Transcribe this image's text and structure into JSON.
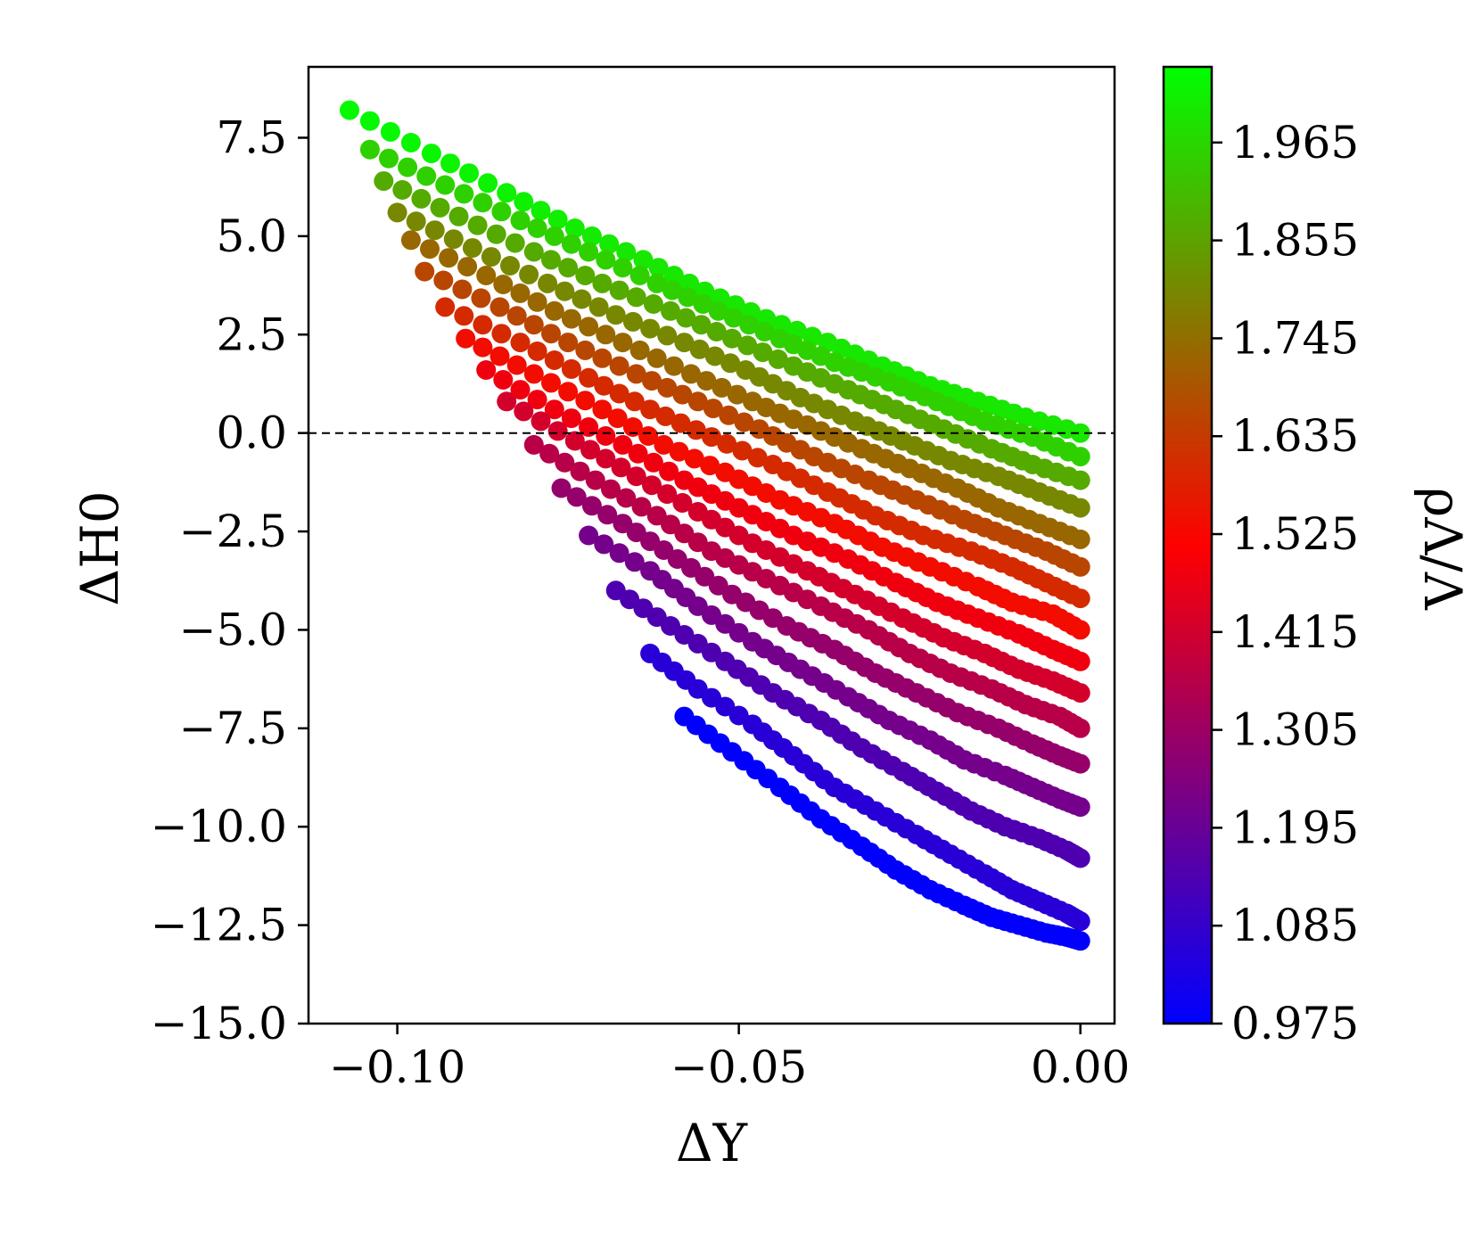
{
  "chart_data": {
    "type": "scatter",
    "title": "",
    "xlabel": "ΔY",
    "ylabel": "ΔH0",
    "colorbar_label": "ρΛ/Λ",
    "xlim": [
      -0.113,
      0.005
    ],
    "ylim": [
      -15.0,
      9.3
    ],
    "x_ticks": [
      -0.1,
      -0.05,
      0.0
    ],
    "x_tick_labels": [
      "−0.10",
      "−0.05",
      "0.00"
    ],
    "y_ticks": [
      7.5,
      5.0,
      2.5,
      0.0,
      -2.5,
      -5.0,
      -7.5,
      -10.0,
      -12.5,
      -15.0
    ],
    "y_tick_labels": [
      "7.5",
      "5.0",
      "2.5",
      "0.0",
      "−2.5",
      "−5.0",
      "−7.5",
      "−10.0",
      "−12.5",
      "−15.0"
    ],
    "colorbar": {
      "range": [
        0.975,
        2.05
      ],
      "ticks": [
        0.975,
        1.085,
        1.195,
        1.305,
        1.415,
        1.525,
        1.635,
        1.745,
        1.855,
        1.965
      ],
      "tick_labels": [
        "0.975",
        "1.085",
        "1.195",
        "1.305",
        "1.415",
        "1.525",
        "1.635",
        "1.745",
        "1.855",
        "1.965"
      ],
      "colors": [
        "#0000ff",
        "#ff0000",
        "#00ff00"
      ]
    },
    "reference_line": {
      "y": 0.0,
      "style": "dashed",
      "color": "#000000"
    },
    "series": [
      {
        "x": [
          -0.107,
          -0.095,
          -0.084,
          -0.074,
          -0.064,
          -0.055,
          -0.046,
          -0.037,
          -0.029,
          -0.022,
          -0.015,
          -0.008,
          0.0
        ],
        "y": [
          8.2,
          7.1,
          6.1,
          5.2,
          4.4,
          3.6,
          2.9,
          2.3,
          1.7,
          1.2,
          0.8,
          0.4,
          0.0
        ],
        "c": [
          2.04,
          2.03,
          2.02,
          2.01,
          2.0,
          2.0,
          2.0,
          2.0,
          2.0,
          2.0,
          2.0,
          2.0,
          2.0
        ]
      },
      {
        "x": [
          -0.104,
          -0.093,
          -0.082,
          -0.072,
          -0.062,
          -0.053,
          -0.044,
          -0.036,
          -0.028,
          -0.021,
          -0.014,
          -0.007,
          0.0
        ],
        "y": [
          7.2,
          6.3,
          5.4,
          4.6,
          3.8,
          3.1,
          2.4,
          1.8,
          1.3,
          0.8,
          0.3,
          -0.1,
          -0.6
        ],
        "c": [
          1.95,
          1.95,
          1.95,
          1.95,
          1.95,
          1.95,
          1.95,
          1.95,
          1.95,
          1.95,
          1.95,
          1.95,
          1.95
        ]
      },
      {
        "x": [
          -0.102,
          -0.091,
          -0.08,
          -0.07,
          -0.06,
          -0.051,
          -0.042,
          -0.034,
          -0.027,
          -0.02,
          -0.013,
          -0.007,
          0.0
        ],
        "y": [
          6.4,
          5.5,
          4.6,
          3.8,
          3.1,
          2.4,
          1.7,
          1.1,
          0.6,
          0.1,
          -0.4,
          -0.8,
          -1.2
        ],
        "c": [
          1.87,
          1.87,
          1.87,
          1.87,
          1.87,
          1.87,
          1.87,
          1.87,
          1.87,
          1.87,
          1.87,
          1.87,
          1.87
        ]
      },
      {
        "x": [
          -0.1,
          -0.089,
          -0.078,
          -0.068,
          -0.058,
          -0.049,
          -0.041,
          -0.033,
          -0.026,
          -0.019,
          -0.012,
          -0.006,
          0.0
        ],
        "y": [
          5.6,
          4.7,
          3.8,
          3.0,
          2.3,
          1.6,
          0.9,
          0.3,
          -0.2,
          -0.7,
          -1.1,
          -1.5,
          -1.9
        ],
        "c": [
          1.8,
          1.8,
          1.8,
          1.8,
          1.8,
          1.8,
          1.8,
          1.8,
          1.8,
          1.8,
          1.8,
          1.8,
          1.8
        ]
      },
      {
        "x": [
          -0.098,
          -0.087,
          -0.077,
          -0.067,
          -0.057,
          -0.048,
          -0.04,
          -0.032,
          -0.025,
          -0.018,
          -0.012,
          -0.006,
          0.0
        ],
        "y": [
          4.9,
          4.0,
          3.1,
          2.3,
          1.5,
          0.8,
          0.2,
          -0.4,
          -0.9,
          -1.4,
          -1.9,
          -2.3,
          -2.7
        ],
        "c": [
          1.73,
          1.73,
          1.73,
          1.73,
          1.73,
          1.73,
          1.73,
          1.73,
          1.73,
          1.73,
          1.73,
          1.73,
          1.73
        ]
      },
      {
        "x": [
          -0.096,
          -0.085,
          -0.075,
          -0.065,
          -0.056,
          -0.047,
          -0.039,
          -0.031,
          -0.024,
          -0.017,
          -0.011,
          -0.005,
          0.0
        ],
        "y": [
          4.1,
          3.2,
          2.3,
          1.5,
          0.8,
          0.1,
          -0.6,
          -1.2,
          -1.7,
          -2.2,
          -2.6,
          -3.0,
          -3.4
        ],
        "c": [
          1.66,
          1.66,
          1.66,
          1.66,
          1.66,
          1.66,
          1.66,
          1.66,
          1.66,
          1.66,
          1.66,
          1.66,
          1.66
        ]
      },
      {
        "x": [
          -0.093,
          -0.082,
          -0.072,
          -0.063,
          -0.054,
          -0.045,
          -0.037,
          -0.03,
          -0.023,
          -0.016,
          -0.01,
          -0.005,
          0.0
        ],
        "y": [
          3.2,
          2.3,
          1.4,
          0.6,
          -0.1,
          -0.8,
          -1.5,
          -2.1,
          -2.6,
          -3.0,
          -3.4,
          -3.8,
          -4.2
        ],
        "c": [
          1.6,
          1.6,
          1.6,
          1.6,
          1.6,
          1.6,
          1.6,
          1.6,
          1.6,
          1.6,
          1.6,
          1.6,
          1.6
        ]
      },
      {
        "x": [
          -0.09,
          -0.08,
          -0.07,
          -0.061,
          -0.052,
          -0.044,
          -0.036,
          -0.029,
          -0.022,
          -0.015,
          -0.01,
          -0.004,
          0.0
        ],
        "y": [
          2.4,
          1.5,
          0.6,
          -0.3,
          -1.0,
          -1.7,
          -2.3,
          -2.9,
          -3.4,
          -3.9,
          -4.3,
          -4.6,
          -5.0
        ],
        "c": [
          1.54,
          1.54,
          1.54,
          1.54,
          1.54,
          1.54,
          1.54,
          1.54,
          1.54,
          1.54,
          1.54,
          1.54,
          1.54
        ]
      },
      {
        "x": [
          -0.087,
          -0.077,
          -0.067,
          -0.058,
          -0.05,
          -0.042,
          -0.034,
          -0.027,
          -0.021,
          -0.015,
          -0.009,
          -0.004,
          0.0
        ],
        "y": [
          1.6,
          0.6,
          -0.3,
          -1.2,
          -1.9,
          -2.6,
          -3.2,
          -3.8,
          -4.3,
          -4.7,
          -5.1,
          -5.5,
          -5.8
        ],
        "c": [
          1.48,
          1.48,
          1.48,
          1.48,
          1.48,
          1.48,
          1.48,
          1.48,
          1.48,
          1.48,
          1.48,
          1.48,
          1.48
        ]
      },
      {
        "x": [
          -0.084,
          -0.074,
          -0.065,
          -0.056,
          -0.048,
          -0.04,
          -0.033,
          -0.026,
          -0.02,
          -0.014,
          -0.009,
          -0.004,
          0.0
        ],
        "y": [
          0.8,
          -0.2,
          -1.1,
          -2.0,
          -2.8,
          -3.5,
          -4.1,
          -4.7,
          -5.2,
          -5.6,
          -6.0,
          -6.3,
          -6.6
        ],
        "c": [
          1.42,
          1.42,
          1.42,
          1.42,
          1.42,
          1.42,
          1.42,
          1.42,
          1.42,
          1.42,
          1.42,
          1.42,
          1.42
        ]
      },
      {
        "x": [
          -0.08,
          -0.071,
          -0.062,
          -0.054,
          -0.046,
          -0.038,
          -0.031,
          -0.025,
          -0.019,
          -0.013,
          -0.008,
          -0.003,
          0.0
        ],
        "y": [
          -0.3,
          -1.2,
          -2.1,
          -3.0,
          -3.7,
          -4.4,
          -5.0,
          -5.6,
          -6.1,
          -6.5,
          -6.9,
          -7.2,
          -7.5
        ],
        "c": [
          1.36,
          1.36,
          1.36,
          1.36,
          1.36,
          1.36,
          1.36,
          1.36,
          1.36,
          1.36,
          1.36,
          1.36,
          1.36
        ]
      },
      {
        "x": [
          -0.076,
          -0.067,
          -0.059,
          -0.051,
          -0.043,
          -0.036,
          -0.03,
          -0.024,
          -0.018,
          -0.012,
          -0.007,
          -0.003,
          0.0
        ],
        "y": [
          -1.4,
          -2.3,
          -3.2,
          -4.1,
          -4.9,
          -5.5,
          -6.1,
          -6.6,
          -7.1,
          -7.5,
          -7.9,
          -8.2,
          -8.4
        ],
        "c": [
          1.29,
          1.29,
          1.29,
          1.29,
          1.29,
          1.29,
          1.29,
          1.29,
          1.29,
          1.29,
          1.29,
          1.29,
          1.29
        ]
      },
      {
        "x": [
          -0.072,
          -0.063,
          -0.056,
          -0.048,
          -0.041,
          -0.034,
          -0.028,
          -0.022,
          -0.017,
          -0.011,
          -0.007,
          -0.003,
          0.0
        ],
        "y": [
          -2.6,
          -3.5,
          -4.4,
          -5.3,
          -6.0,
          -6.7,
          -7.3,
          -7.8,
          -8.3,
          -8.7,
          -9.0,
          -9.3,
          -9.5
        ],
        "c": [
          1.22,
          1.22,
          1.22,
          1.22,
          1.22,
          1.22,
          1.22,
          1.22,
          1.22,
          1.22,
          1.22,
          1.22,
          1.22
        ]
      },
      {
        "x": [
          -0.068,
          -0.06,
          -0.052,
          -0.045,
          -0.038,
          -0.032,
          -0.026,
          -0.021,
          -0.016,
          -0.011,
          -0.006,
          -0.002,
          0.0
        ],
        "y": [
          -4.0,
          -4.9,
          -5.8,
          -6.6,
          -7.3,
          -8.0,
          -8.6,
          -9.1,
          -9.6,
          -10.0,
          -10.3,
          -10.6,
          -10.8
        ],
        "c": [
          1.14,
          1.14,
          1.14,
          1.14,
          1.14,
          1.14,
          1.14,
          1.14,
          1.14,
          1.14,
          1.14,
          1.14,
          1.14
        ]
      },
      {
        "x": [
          -0.063,
          -0.056,
          -0.048,
          -0.042,
          -0.036,
          -0.03,
          -0.024,
          -0.019,
          -0.014,
          -0.01,
          -0.006,
          -0.002,
          0.0
        ],
        "y": [
          -5.6,
          -6.5,
          -7.4,
          -8.2,
          -9.0,
          -9.6,
          -10.2,
          -10.7,
          -11.2,
          -11.6,
          -11.9,
          -12.2,
          -12.4
        ],
        "c": [
          1.06,
          1.06,
          1.06,
          1.06,
          1.06,
          1.06,
          1.06,
          1.06,
          1.06,
          1.06,
          1.06,
          1.06,
          1.06
        ]
      },
      {
        "x": [
          -0.058,
          -0.051,
          -0.044,
          -0.038,
          -0.032,
          -0.027,
          -0.022,
          -0.017,
          -0.013,
          -0.009,
          -0.005,
          -0.002,
          0.0
        ],
        "y": [
          -7.2,
          -8.1,
          -9.0,
          -9.8,
          -10.5,
          -11.1,
          -11.6,
          -12.0,
          -12.3,
          -12.5,
          -12.7,
          -12.8,
          -12.9
        ],
        "c": [
          0.98,
          0.98,
          0.98,
          0.98,
          0.98,
          0.98,
          0.98,
          0.98,
          0.98,
          0.98,
          0.98,
          0.98,
          0.98
        ]
      }
    ]
  }
}
